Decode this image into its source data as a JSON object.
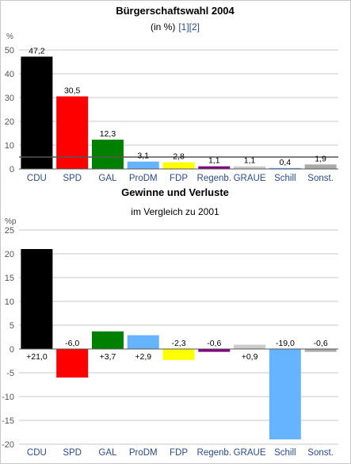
{
  "chart_data": [
    {
      "type": "bar",
      "title": "Bürgerschaftswahl 2004",
      "subtitle": "(in %)",
      "refs": [
        "[1]",
        "[2]"
      ],
      "ylabel": "%",
      "ylim": [
        0,
        50
      ],
      "yticks": [
        0,
        10,
        20,
        30,
        40,
        50
      ],
      "threshold": 5,
      "grid": true,
      "categories": [
        "CDU",
        "SPD",
        "GAL",
        "ProDM",
        "FDP",
        "Regenb.",
        "GRAUE",
        "Schill",
        "Sonst."
      ],
      "values": [
        47.2,
        30.5,
        12.3,
        3.1,
        2.8,
        1.1,
        1.1,
        0.4,
        1.9
      ],
      "value_labels": [
        "47,2",
        "30,5",
        "12,3",
        "3,1",
        "2,8",
        "1,1",
        "1,1",
        "0,4",
        "1,9"
      ],
      "colors": [
        "#000000",
        "#ff0000",
        "#008000",
        "#66b3ff",
        "#ffff00",
        "#800080",
        "#cccccc",
        "#66b3ff",
        "#aaaaaa"
      ]
    },
    {
      "type": "bar",
      "title": "Gewinne und Verluste",
      "subtitle": "im Vergleich zu 2001",
      "ylabel": "%p",
      "ylim": [
        -20,
        25
      ],
      "yticks": [
        -20,
        -15,
        -10,
        -5,
        0,
        5,
        10,
        15,
        20,
        25
      ],
      "grid": true,
      "categories": [
        "CDU",
        "SPD",
        "GAL",
        "ProDM",
        "FDP",
        "Regenb.",
        "GRAUE",
        "Schill",
        "Sonst."
      ],
      "values": [
        21.0,
        -6.0,
        3.7,
        2.9,
        -2.3,
        -0.6,
        0.9,
        -19.0,
        -0.6
      ],
      "value_labels": [
        "+21,0",
        "-6,0",
        "+3,7",
        "+2,9",
        "-2,3",
        "-0,6",
        "+0,9",
        "-19,0",
        "-0,6"
      ],
      "colors": [
        "#000000",
        "#ff0000",
        "#008000",
        "#66b3ff",
        "#ffff00",
        "#800080",
        "#cccccc",
        "#66b3ff",
        "#aaaaaa"
      ]
    }
  ]
}
